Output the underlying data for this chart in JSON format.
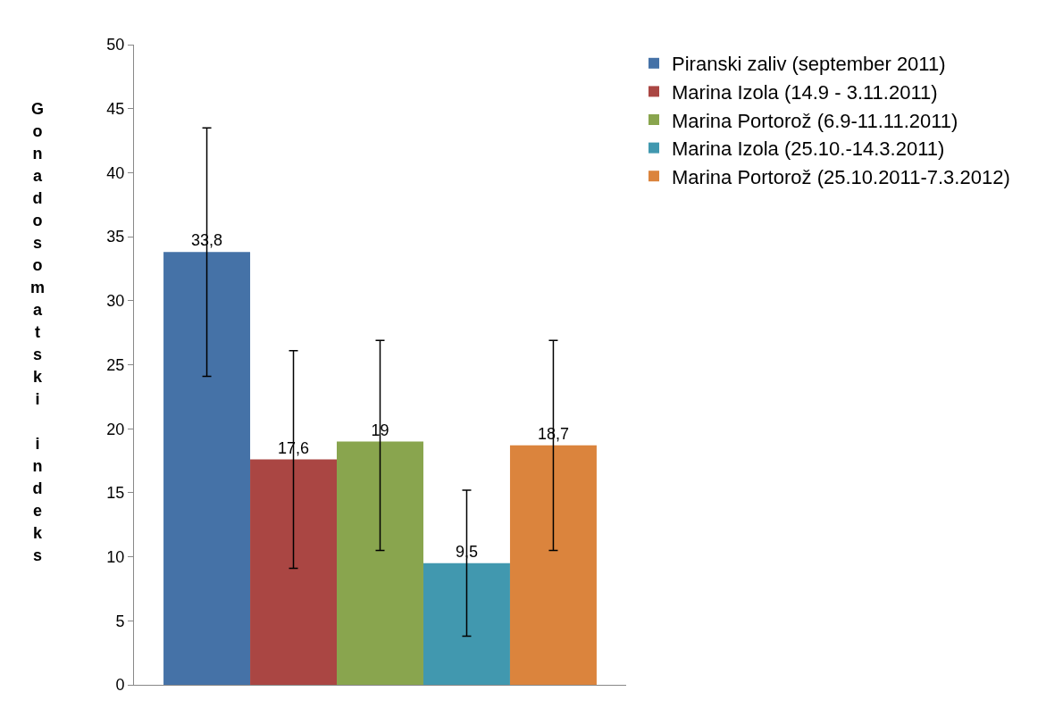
{
  "chart_data": {
    "type": "bar",
    "ylabel": "Gonadosomatski indeks",
    "categories": [
      null
    ],
    "series": [
      {
        "name": "Piranski zaliv (september 2011)",
        "color": "#4572a7",
        "values": [
          33.8
        ],
        "errors": [
          [
            24.1,
            43.5
          ]
        ],
        "value_labels": [
          "33,8"
        ]
      },
      {
        "name": "Marina Izola (14.9 - 3.11.2011)",
        "color": "#aa4643",
        "values": [
          17.6
        ],
        "errors": [
          [
            9.1,
            26.1
          ]
        ],
        "value_labels": [
          "17,6"
        ]
      },
      {
        "name": "Marina Portorož (6.9-11.11.2011)",
        "color": "#89a54e",
        "values": [
          19
        ],
        "errors": [
          [
            10.5,
            26.9
          ]
        ],
        "value_labels": [
          "19"
        ]
      },
      {
        "name": "Marina Izola (25.10.-14.3.2011)",
        "color": "#4198af",
        "values": [
          9.5
        ],
        "errors": [
          [
            3.8,
            15.2
          ]
        ],
        "value_labels": [
          "9,5"
        ]
      },
      {
        "name": "Marina Portorož (25.10.2011-7.3.2012)",
        "color": "#db843d",
        "values": [
          18.7
        ],
        "errors": [
          [
            10.5,
            26.9
          ]
        ],
        "value_labels": [
          "18,7"
        ]
      }
    ],
    "ylim": [
      0,
      50
    ],
    "yticks": [
      0,
      5,
      10,
      15,
      20,
      25,
      30,
      35,
      40,
      45,
      50
    ],
    "grid": false,
    "legend": "top right"
  }
}
